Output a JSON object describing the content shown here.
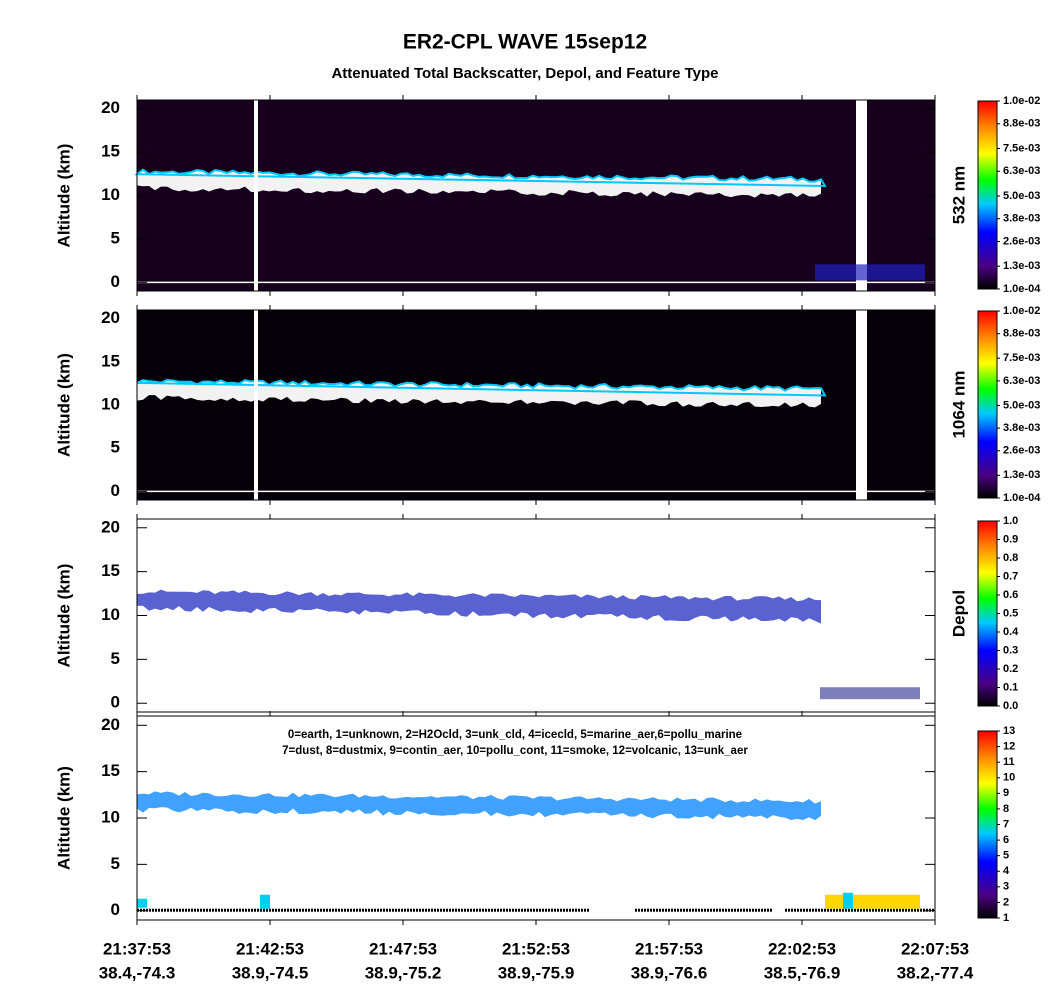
{
  "title": "ER2-CPL WAVE 15sep12",
  "subtitle": "Attenuated Total Backscatter, Depol, and Feature Type",
  "x_axis": {
    "ticks": [
      {
        "time": "21:37:53",
        "location": "38.4,-74.3"
      },
      {
        "time": "21:42:53",
        "location": "38.9,-74.5"
      },
      {
        "time": "21:47:53",
        "location": "38.9,-75.2"
      },
      {
        "time": "21:52:53",
        "location": "38.9,-75.9"
      },
      {
        "time": "21:57:53",
        "location": "38.9,-76.6"
      },
      {
        "time": "22:02:53",
        "location": "38.5,-76.9"
      },
      {
        "time": "22:07:53",
        "location": "38.2,-77.4"
      }
    ]
  },
  "chart_data": [
    {
      "type": "heatmap",
      "ylabel": "Altitude (km)",
      "ylim": [
        -1,
        21
      ],
      "yticks": [
        0,
        5,
        10,
        15,
        20
      ],
      "colorbar": {
        "label": "532 nm",
        "lim": [
          0.0001,
          0.01
        ],
        "ticks": [
          {
            "value": 0.0001,
            "label": "1.0e-04"
          },
          {
            "value": 0.0013,
            "label": "1.3e-03"
          },
          {
            "value": 0.0026,
            "label": "2.6e-03"
          },
          {
            "value": 0.0038,
            "label": "3.8e-03"
          },
          {
            "value": 0.005,
            "label": "5.0e-03"
          },
          {
            "value": 0.0063,
            "label": "6.3e-03"
          },
          {
            "value": 0.0075,
            "label": "7.5e-03"
          },
          {
            "value": 0.0088,
            "label": "8.8e-03"
          },
          {
            "value": 0.01,
            "label": "1.0e-02"
          }
        ]
      }
    },
    {
      "type": "heatmap",
      "ylabel": "Altitude (km)",
      "ylim": [
        -1,
        21
      ],
      "yticks": [
        0,
        5,
        10,
        15,
        20
      ],
      "colorbar": {
        "label": "1064 nm",
        "lim": [
          0.0001,
          0.01
        ],
        "ticks": [
          {
            "value": 0.0001,
            "label": "1.0e-04"
          },
          {
            "value": 0.0013,
            "label": "1.3e-03"
          },
          {
            "value": 0.0026,
            "label": "2.6e-03"
          },
          {
            "value": 0.0038,
            "label": "3.8e-03"
          },
          {
            "value": 0.005,
            "label": "5.0e-03"
          },
          {
            "value": 0.0063,
            "label": "6.3e-03"
          },
          {
            "value": 0.0075,
            "label": "7.5e-03"
          },
          {
            "value": 0.0088,
            "label": "8.8e-03"
          },
          {
            "value": 0.01,
            "label": "1.0e-02"
          }
        ]
      }
    },
    {
      "type": "heatmap",
      "ylabel": "Altitude (km)",
      "ylim": [
        -1,
        21
      ],
      "yticks": [
        0,
        5,
        10,
        15,
        20
      ],
      "colorbar": {
        "label": "Depol",
        "lim": [
          0,
          1
        ],
        "ticks": [
          {
            "value": 0,
            "label": "0.0"
          },
          0.1,
          0.2,
          0.3,
          0.4,
          0.5,
          0.6,
          0.7,
          0.8,
          0.9,
          {
            "value": 1,
            "label": "1.0"
          }
        ]
      }
    },
    {
      "type": "heatmap",
      "ylabel": "Altitude (km)",
      "ylim": [
        -1,
        21
      ],
      "yticks": [
        0,
        5,
        10,
        15,
        20
      ],
      "annotations": [
        "0=earth, 1=unknown, 2=H2Ocld, 3=unk_cld, 4=icecld, 5=marine_aer,6=pollu_marine",
        "7=dust, 8=dustmix, 9=contin_aer, 10=pollu_cont, 11=smoke, 12=volcanic, 13=unk_aer"
      ],
      "colorbar": {
        "lim": [
          1,
          13
        ],
        "ticks": [
          1,
          2,
          3,
          4,
          5,
          6,
          7,
          8,
          9,
          10,
          11,
          12,
          13
        ]
      }
    }
  ]
}
